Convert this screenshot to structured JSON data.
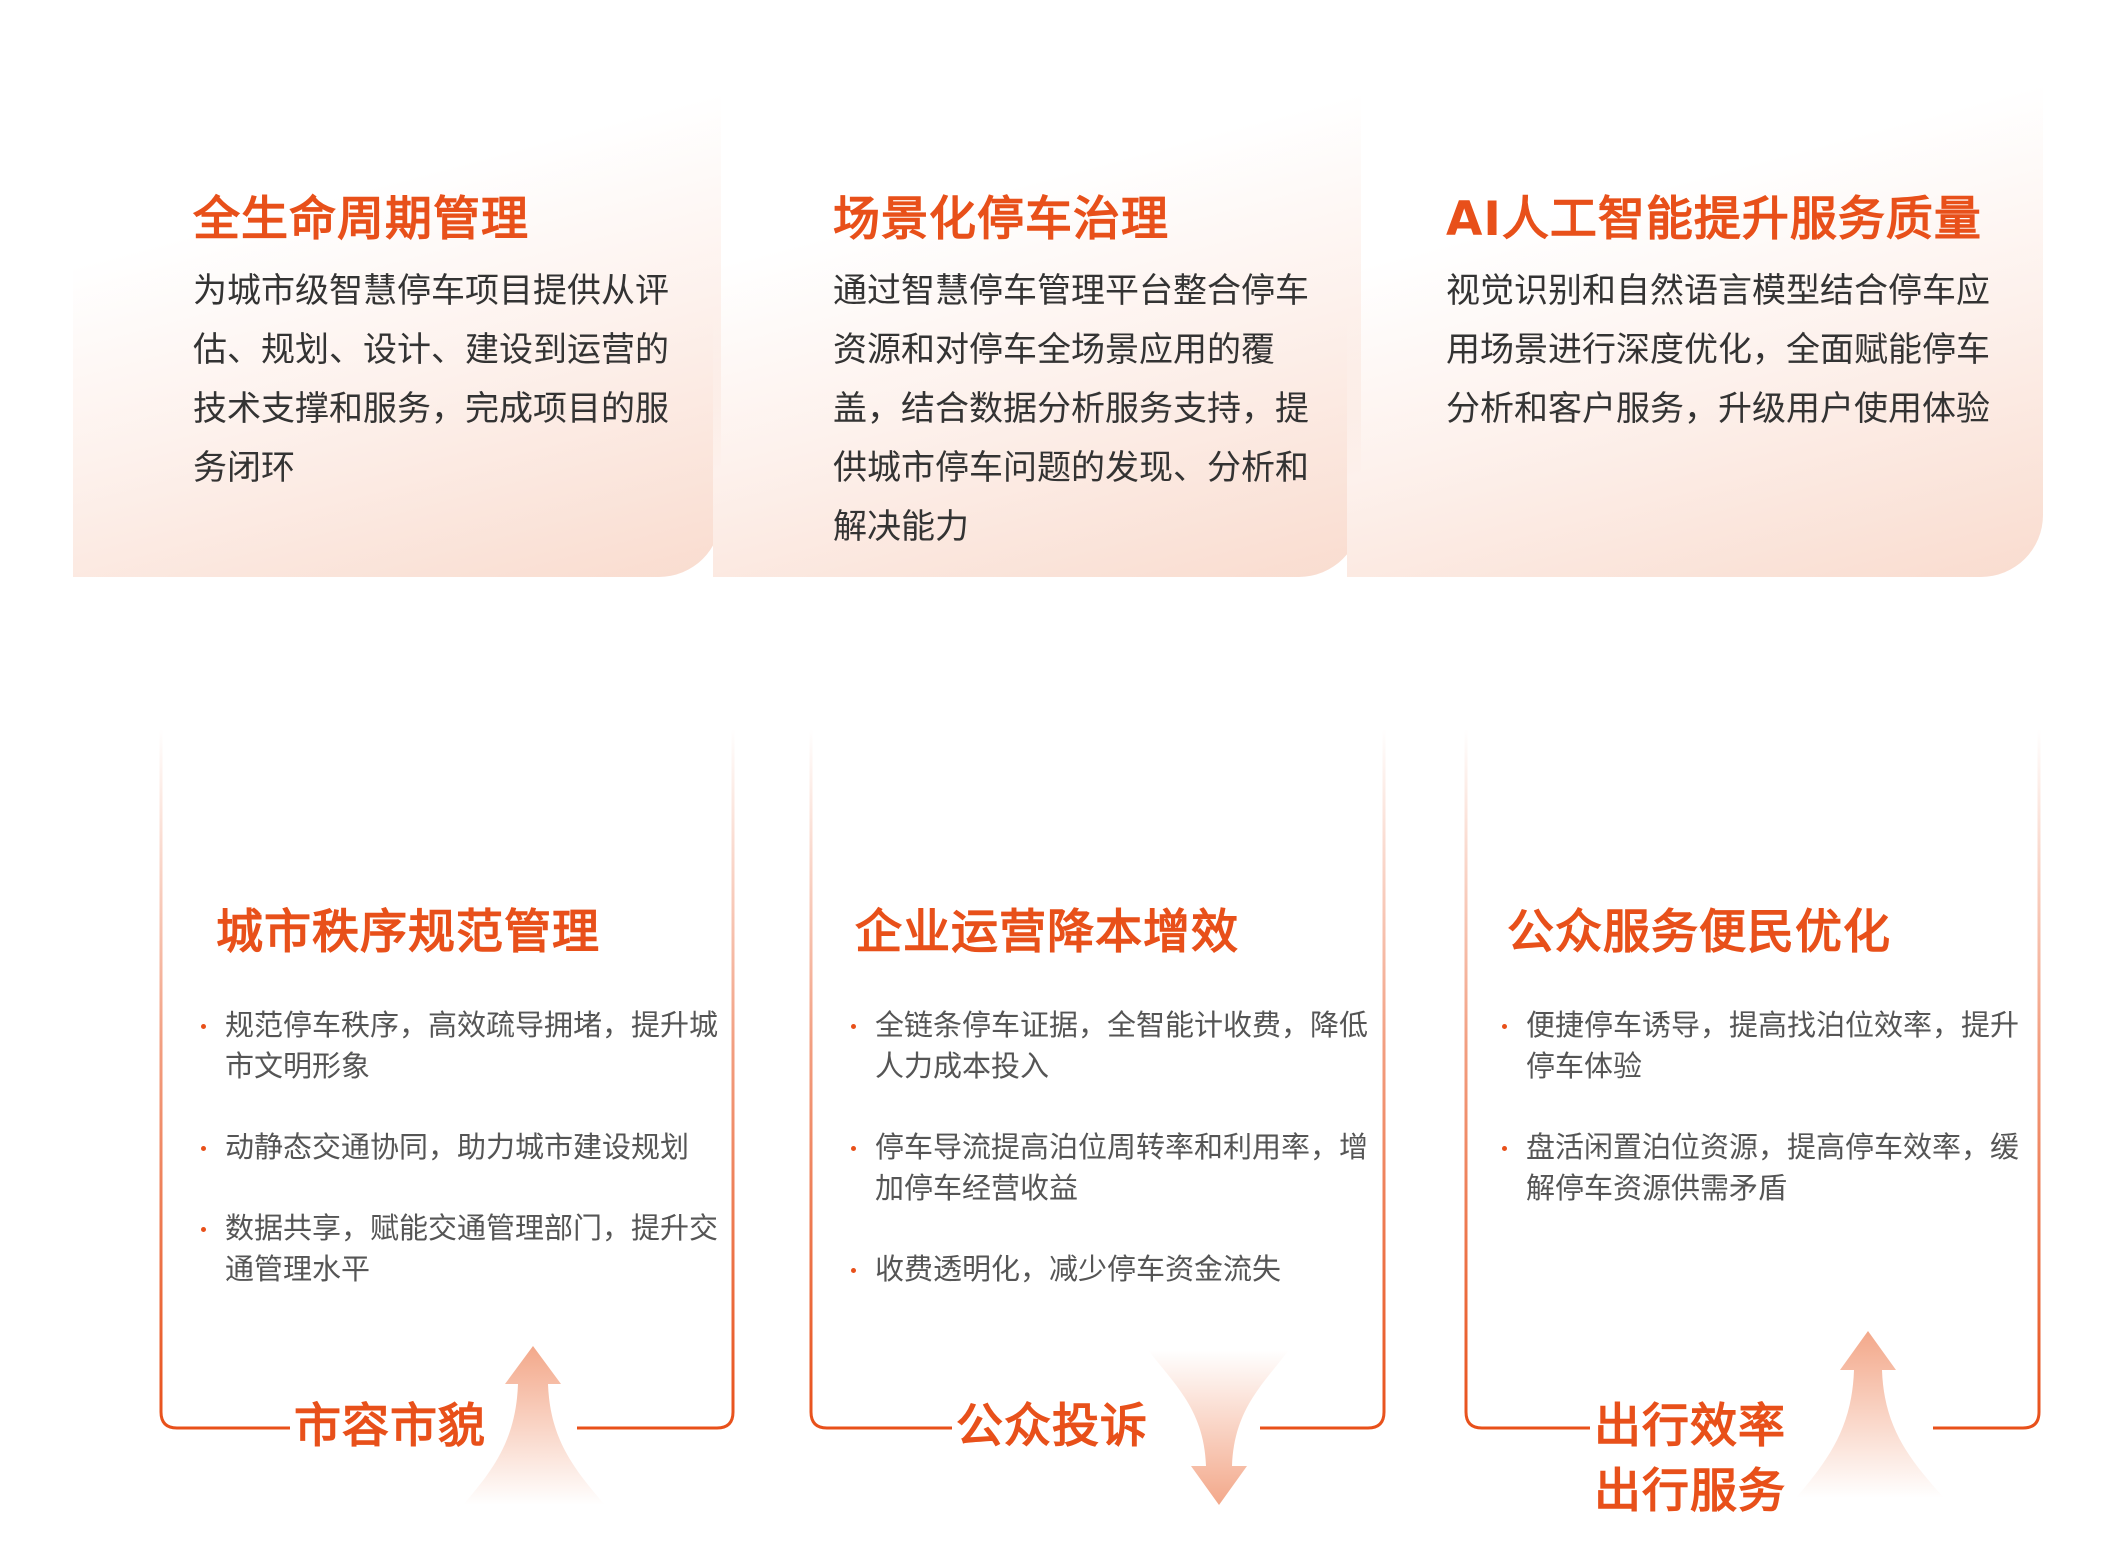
{
  "colors": {
    "accent": "#e8501a",
    "card_gradient_end": "#f9dccf",
    "arrow": "#f3a88a"
  },
  "top_cards": [
    {
      "title": "全生命周期管理",
      "body": "为城市级智慧停车项目提供从评估、规划、设计、建设到运营的技术支撑和服务，完成项目的服务闭环"
    },
    {
      "title": "场景化停车治理",
      "body": "通过智慧停车管理平台整合停车资源和对停车全场景应用的覆盖，结合数据分析服务支持，提供城市停车问题的发现、分析和解决能力"
    },
    {
      "title": "AI人工智能提升服务质量",
      "body": "视觉识别和自然语言模型结合停车应用场景进行深度优化，全面赋能停车分析和客户服务，升级用户使用体验"
    }
  ],
  "boxes": [
    {
      "title": "城市秩序规范管理",
      "items": [
        "规范停车秩序，高效疏导拥堵，提升城市文明形象",
        "动静态交通协同，助力城市建设规划",
        "数据共享，赋能交通管理部门，提升交通管理水平"
      ],
      "footer": "市容市貌",
      "arrow": "up-arrow"
    },
    {
      "title": "企业运营降本增效",
      "items": [
        "全链条停车证据，全智能计收费，降低人力成本投入",
        "停车导流提高泊位周转率和利用率，增加停车经营收益",
        "收费透明化，减少停车资金流失"
      ],
      "footer": "公众投诉",
      "arrow": "down-arrow"
    },
    {
      "title": "公众服务便民优化",
      "items": [
        "便捷停车诱导，提高找泊位效率，提升停车体验",
        "盘活闲置泊位资源，提高停车效率，缓解停车资源供需矛盾"
      ],
      "footer": "出行效率",
      "footer2": "出行服务",
      "arrow": "up-arrow"
    }
  ]
}
